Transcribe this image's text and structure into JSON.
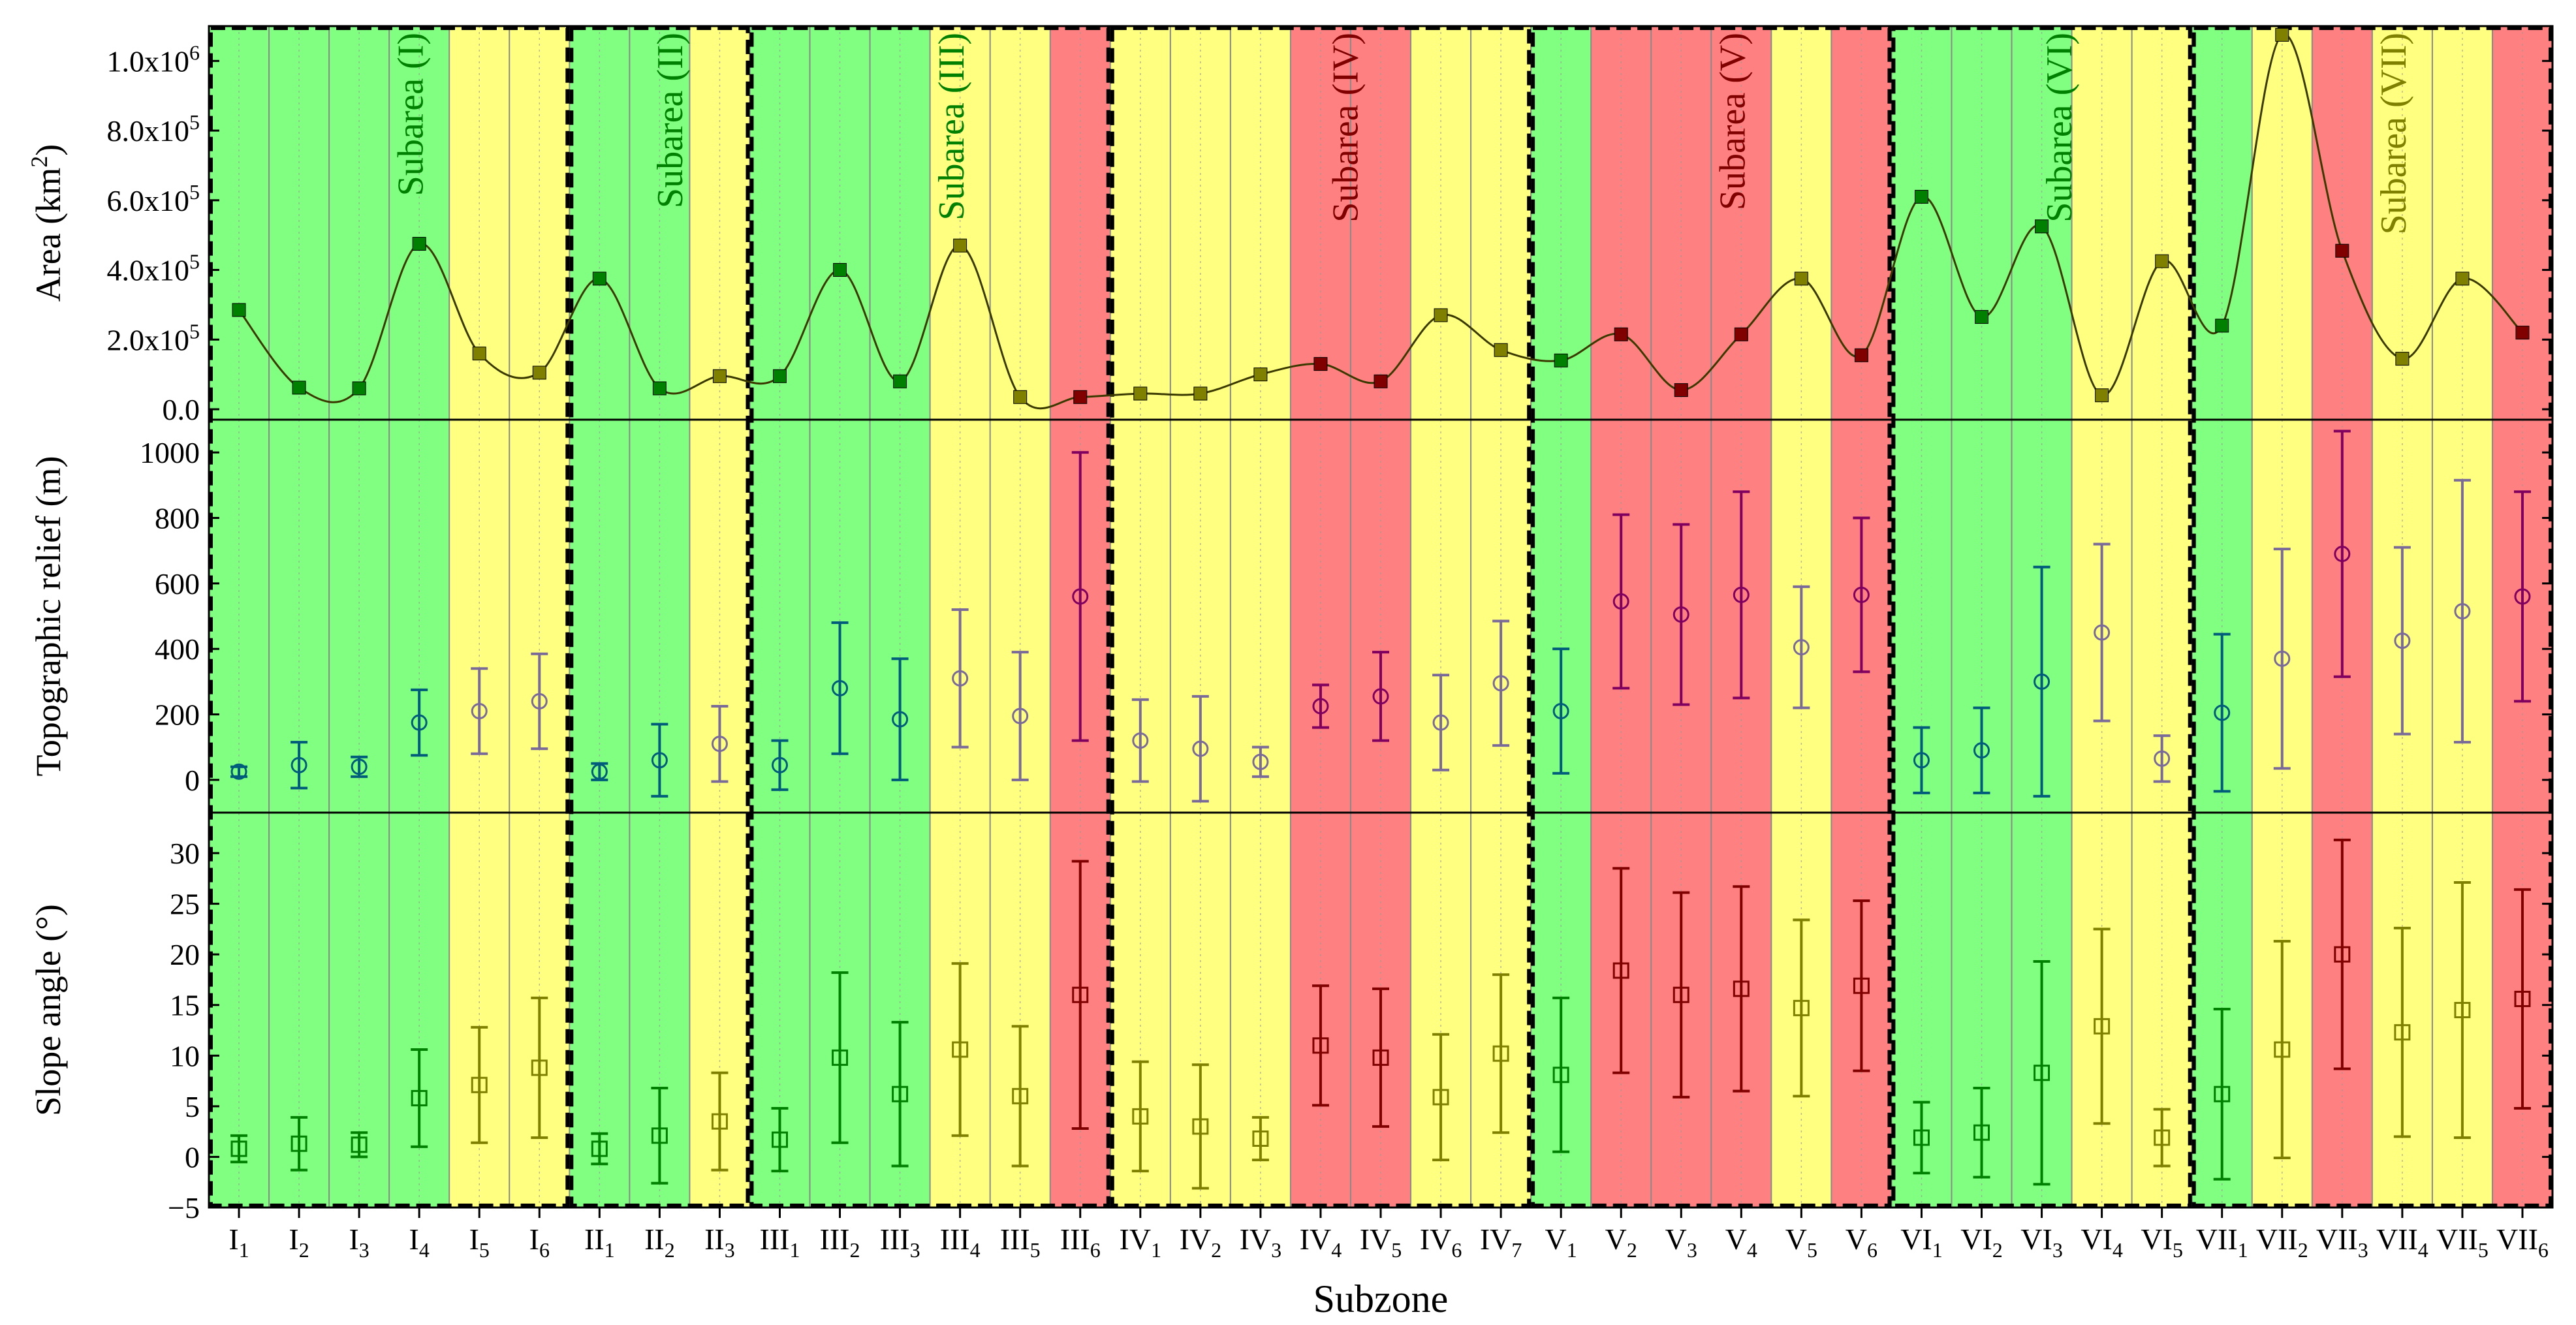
{
  "chart_data": {
    "type": "stacked-panels",
    "xlabel": "Subzone",
    "categories": [
      {
        "base": "I",
        "sub": "1",
        "score": "green"
      },
      {
        "base": "I",
        "sub": "2",
        "score": "green"
      },
      {
        "base": "I",
        "sub": "3",
        "score": "green"
      },
      {
        "base": "I",
        "sub": "4",
        "score": "green"
      },
      {
        "base": "I",
        "sub": "5",
        "score": "yellow"
      },
      {
        "base": "I",
        "sub": "6",
        "score": "yellow"
      },
      {
        "base": "II",
        "sub": "1",
        "score": "green"
      },
      {
        "base": "II",
        "sub": "2",
        "score": "green"
      },
      {
        "base": "II",
        "sub": "3",
        "score": "yellow"
      },
      {
        "base": "III",
        "sub": "1",
        "score": "green"
      },
      {
        "base": "III",
        "sub": "2",
        "score": "green"
      },
      {
        "base": "III",
        "sub": "3",
        "score": "green"
      },
      {
        "base": "III",
        "sub": "4",
        "score": "yellow"
      },
      {
        "base": "III",
        "sub": "5",
        "score": "yellow"
      },
      {
        "base": "III",
        "sub": "6",
        "score": "red"
      },
      {
        "base": "IV",
        "sub": "1",
        "score": "yellow"
      },
      {
        "base": "IV",
        "sub": "2",
        "score": "yellow"
      },
      {
        "base": "IV",
        "sub": "3",
        "score": "yellow"
      },
      {
        "base": "IV",
        "sub": "4",
        "score": "red"
      },
      {
        "base": "IV",
        "sub": "5",
        "score": "red"
      },
      {
        "base": "IV",
        "sub": "6",
        "score": "yellow"
      },
      {
        "base": "IV",
        "sub": "7",
        "score": "yellow"
      },
      {
        "base": "V",
        "sub": "1",
        "score": "green"
      },
      {
        "base": "V",
        "sub": "2",
        "score": "red"
      },
      {
        "base": "V",
        "sub": "3",
        "score": "red"
      },
      {
        "base": "V",
        "sub": "4",
        "score": "red"
      },
      {
        "base": "V",
        "sub": "5",
        "score": "yellow"
      },
      {
        "base": "V",
        "sub": "6",
        "score": "red"
      },
      {
        "base": "VI",
        "sub": "1",
        "score": "green"
      },
      {
        "base": "VI",
        "sub": "2",
        "score": "green"
      },
      {
        "base": "VI",
        "sub": "3",
        "score": "green"
      },
      {
        "base": "VI",
        "sub": "4",
        "score": "yellow"
      },
      {
        "base": "VI",
        "sub": "5",
        "score": "yellow"
      },
      {
        "base": "VII",
        "sub": "1",
        "score": "green"
      },
      {
        "base": "VII",
        "sub": "2",
        "score": "yellow"
      },
      {
        "base": "VII",
        "sub": "3",
        "score": "red"
      },
      {
        "base": "VII",
        "sub": "4",
        "score": "yellow"
      },
      {
        "base": "VII",
        "sub": "5",
        "score": "yellow"
      },
      {
        "base": "VII",
        "sub": "6",
        "score": "red"
      }
    ],
    "subareas": [
      {
        "label": "Subarea (I)",
        "from": 0,
        "to": 5,
        "color": "green"
      },
      {
        "label": "Subarea (II)",
        "from": 6,
        "to": 8,
        "color": "green"
      },
      {
        "label": "Subarea (III)",
        "from": 9,
        "to": 14,
        "color": "green"
      },
      {
        "label": "Subarea (IV)",
        "from": 15,
        "to": 21,
        "color": "red"
      },
      {
        "label": "Subarea (V)",
        "from": 22,
        "to": 27,
        "color": "red"
      },
      {
        "label": "Subarea (VI)",
        "from": 28,
        "to": 32,
        "color": "green"
      },
      {
        "label": "Subarea (VII)",
        "from": 33,
        "to": 38,
        "color": "yellow"
      }
    ],
    "panels": [
      {
        "id": "area",
        "ylabel_main": "Area (km",
        "ylabel_sup": "2",
        "ylabel_end": ")",
        "ylim": [
          -30000,
          1100000
        ],
        "ticks": [
          {
            "v": 0,
            "m": "0.0",
            "e": ""
          },
          {
            "v": 200000,
            "m": "2.0x10",
            "e": "5"
          },
          {
            "v": 400000,
            "m": "4.0x10",
            "e": "5"
          },
          {
            "v": 600000,
            "m": "6.0x10",
            "e": "5"
          },
          {
            "v": 800000,
            "m": "8.0x10",
            "e": "5"
          },
          {
            "v": 1000000,
            "m": "1.0x10",
            "e": "6"
          }
        ],
        "values": [
          285000,
          62000,
          60000,
          475000,
          160000,
          105000,
          375000,
          60000,
          95000,
          95000,
          400000,
          80000,
          470000,
          35000,
          35000,
          45000,
          45000,
          100000,
          130000,
          80000,
          270000,
          170000,
          140000,
          215000,
          55000,
          215000,
          375000,
          155000,
          610000,
          265000,
          525000,
          40000,
          425000,
          240000,
          1075000,
          455000,
          145000,
          375000,
          220000
        ]
      },
      {
        "id": "relief",
        "ylabel_main": "Topographic relief (m)",
        "ylim": [
          -100,
          1100
        ],
        "ticks": [
          {
            "v": 0,
            "m": "0"
          },
          {
            "v": 200,
            "m": "200"
          },
          {
            "v": 400,
            "m": "400"
          },
          {
            "v": 600,
            "m": "600"
          },
          {
            "v": 800,
            "m": "800"
          },
          {
            "v": 1000,
            "m": "1000"
          }
        ],
        "means": [
          25,
          45,
          40,
          175,
          210,
          240,
          25,
          60,
          110,
          45,
          280,
          185,
          310,
          195,
          560,
          120,
          95,
          55,
          225,
          255,
          175,
          295,
          210,
          545,
          505,
          565,
          405,
          565,
          60,
          90,
          300,
          450,
          65,
          205,
          370,
          690,
          425,
          515,
          560
        ],
        "err": [
          15,
          70,
          30,
          100,
          130,
          145,
          25,
          110,
          115,
          75,
          200,
          185,
          210,
          195,
          440,
          125,
          160,
          45,
          65,
          135,
          145,
          190,
          190,
          265,
          275,
          315,
          185,
          235,
          100,
          130,
          350,
          270,
          70,
          240,
          335,
          375,
          285,
          400,
          320
        ]
      },
      {
        "id": "slope",
        "ylabel_main": "Slope angle (°)",
        "ylim": [
          -5,
          34
        ],
        "ticks": [
          {
            "v": -5,
            "m": "−5"
          },
          {
            "v": 0,
            "m": "0"
          },
          {
            "v": 5,
            "m": "5"
          },
          {
            "v": 10,
            "m": "10"
          },
          {
            "v": 15,
            "m": "15"
          },
          {
            "v": 20,
            "m": "20"
          },
          {
            "v": 25,
            "m": "25"
          },
          {
            "v": 30,
            "m": "30"
          }
        ],
        "means": [
          0.8,
          1.3,
          1.2,
          5.8,
          7.1,
          8.8,
          0.8,
          2.1,
          3.5,
          1.7,
          9.8,
          6.2,
          10.6,
          6.0,
          16.0,
          4.0,
          3.0,
          1.8,
          11.0,
          9.8,
          5.9,
          10.2,
          8.1,
          18.4,
          16.0,
          16.6,
          14.7,
          16.9,
          1.9,
          2.4,
          8.3,
          12.9,
          1.9,
          6.2,
          10.6,
          20.0,
          12.3,
          14.5,
          15.6
        ],
        "err": [
          1.3,
          2.6,
          1.2,
          4.8,
          5.7,
          6.9,
          1.5,
          4.7,
          4.8,
          3.1,
          8.4,
          7.1,
          8.5,
          6.9,
          13.2,
          5.4,
          6.1,
          2.1,
          5.9,
          6.8,
          6.2,
          7.8,
          7.6,
          10.1,
          10.1,
          10.1,
          8.7,
          8.4,
          3.5,
          4.4,
          11.0,
          9.6,
          2.8,
          8.4,
          10.7,
          11.3,
          10.3,
          12.6,
          10.8
        ]
      }
    ],
    "colors": {
      "green_fill": "#80ff80",
      "yellow_fill": "#ffff80",
      "red_fill": "#ff8080",
      "green_text": "#008000",
      "red_text": "#800000",
      "yellow_text": "#808000",
      "area_line": "#3a3a00",
      "bar_green": "#008000",
      "bar_yellow": "#808000",
      "bar_red": "#800000",
      "relief_green": "#005c7a",
      "relief_yellow": "#7a6a9a",
      "relief_red": "#800060"
    }
  }
}
